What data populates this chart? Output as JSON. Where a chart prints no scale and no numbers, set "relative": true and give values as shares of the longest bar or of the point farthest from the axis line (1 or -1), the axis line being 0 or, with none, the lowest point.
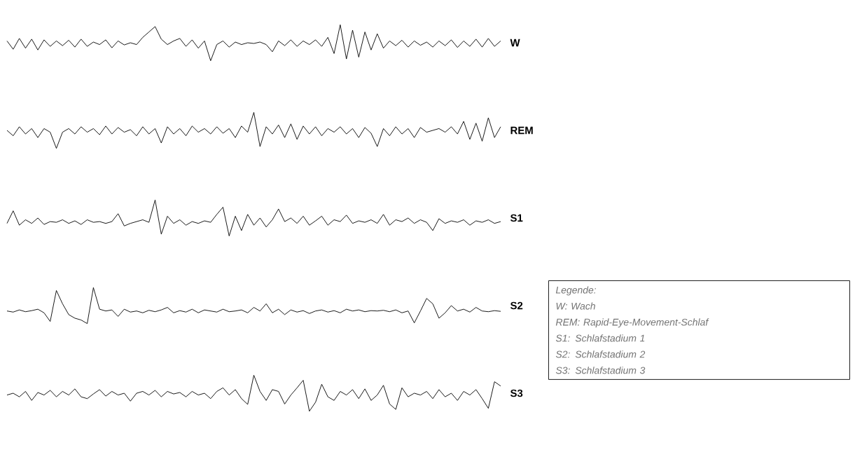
{
  "chart_data": [
    {
      "type": "line",
      "relative": true,
      "line_style": "solid",
      "marker": "none",
      "categories": [
        null,
        null,
        null,
        null,
        null,
        null,
        null,
        null,
        null,
        null,
        null,
        null,
        null,
        null,
        null,
        null,
        null,
        null,
        null,
        null,
        null,
        null,
        null,
        null,
        null,
        null,
        null,
        null,
        null,
        null,
        null,
        null,
        null,
        null,
        null,
        null,
        null,
        null,
        null,
        null,
        null,
        null,
        null,
        null,
        null,
        null,
        null,
        null,
        null,
        null,
        null,
        null,
        null,
        null,
        null,
        null,
        null,
        null,
        null,
        null,
        null,
        null,
        null,
        null,
        null,
        null,
        null,
        null,
        null,
        null,
        null,
        null,
        null,
        null,
        null,
        null,
        null,
        null,
        null,
        null,
        null
      ],
      "series": [
        {
          "name": "W",
          "color": "#000000",
          "values": [
            0.55,
            0.32,
            0.62,
            0.35,
            0.6,
            0.3,
            0.58,
            0.4,
            0.55,
            0.42,
            0.57,
            0.38,
            0.6,
            0.4,
            0.52,
            0.45,
            0.58,
            0.36,
            0.55,
            0.44,
            0.5,
            0.45,
            0.65,
            0.8,
            0.95,
            0.6,
            0.45,
            0.55,
            0.62,
            0.4,
            0.58,
            0.35,
            0.55,
            0.0,
            0.45,
            0.55,
            0.38,
            0.52,
            0.45,
            0.5,
            0.48,
            0.52,
            0.45,
            0.25,
            0.55,
            0.42,
            0.58,
            0.4,
            0.55,
            0.45,
            0.58,
            0.4,
            0.65,
            0.2,
            1.0,
            0.05,
            0.85,
            0.1,
            0.8,
            0.3,
            0.75,
            0.35,
            0.55,
            0.42,
            0.57,
            0.38,
            0.55,
            0.43,
            0.52,
            0.38,
            0.55,
            0.42,
            0.58,
            0.37,
            0.55,
            0.4,
            0.6,
            0.38,
            0.62,
            0.4,
            0.55
          ]
        }
      ]
    },
    {
      "type": "line",
      "relative": true,
      "line_style": "solid",
      "marker": "none",
      "categories": [
        null,
        null,
        null,
        null,
        null,
        null,
        null,
        null,
        null,
        null,
        null,
        null,
        null,
        null,
        null,
        null,
        null,
        null,
        null,
        null,
        null,
        null,
        null,
        null,
        null,
        null,
        null,
        null,
        null,
        null,
        null,
        null,
        null,
        null,
        null,
        null,
        null,
        null,
        null,
        null,
        null,
        null,
        null,
        null,
        null,
        null,
        null,
        null,
        null,
        null,
        null,
        null,
        null,
        null,
        null,
        null,
        null,
        null,
        null,
        null,
        null,
        null,
        null,
        null,
        null,
        null,
        null,
        null,
        null,
        null,
        null,
        null,
        null,
        null,
        null,
        null,
        null,
        null,
        null,
        null,
        null
      ],
      "series": [
        {
          "name": "REM",
          "color": "#000000",
          "values": [
            0.5,
            0.35,
            0.6,
            0.4,
            0.55,
            0.3,
            0.55,
            0.45,
            0.0,
            0.45,
            0.55,
            0.4,
            0.6,
            0.45,
            0.55,
            0.38,
            0.62,
            0.4,
            0.58,
            0.45,
            0.52,
            0.35,
            0.6,
            0.4,
            0.55,
            0.15,
            0.6,
            0.4,
            0.55,
            0.35,
            0.62,
            0.45,
            0.55,
            0.4,
            0.6,
            0.42,
            0.55,
            0.3,
            0.62,
            0.45,
            1.0,
            0.05,
            0.6,
            0.4,
            0.65,
            0.3,
            0.68,
            0.25,
            0.62,
            0.4,
            0.6,
            0.35,
            0.55,
            0.45,
            0.6,
            0.4,
            0.55,
            0.3,
            0.58,
            0.42,
            0.05,
            0.55,
            0.35,
            0.6,
            0.4,
            0.55,
            0.3,
            0.58,
            0.45,
            0.5,
            0.55,
            0.45,
            0.6,
            0.4,
            0.75,
            0.25,
            0.7,
            0.2,
            0.85,
            0.3,
            0.6
          ]
        }
      ]
    },
    {
      "type": "line",
      "relative": true,
      "line_style": "solid",
      "marker": "none",
      "categories": [
        null,
        null,
        null,
        null,
        null,
        null,
        null,
        null,
        null,
        null,
        null,
        null,
        null,
        null,
        null,
        null,
        null,
        null,
        null,
        null,
        null,
        null,
        null,
        null,
        null,
        null,
        null,
        null,
        null,
        null,
        null,
        null,
        null,
        null,
        null,
        null,
        null,
        null,
        null,
        null,
        null,
        null,
        null,
        null,
        null,
        null,
        null,
        null,
        null,
        null,
        null,
        null,
        null,
        null,
        null,
        null,
        null,
        null,
        null,
        null,
        null,
        null,
        null,
        null,
        null,
        null,
        null,
        null,
        null,
        null,
        null,
        null,
        null,
        null,
        null,
        null,
        null,
        null,
        null,
        null,
        null
      ],
      "series": [
        {
          "name": "S1",
          "color": "#000000",
          "values": [
            0.35,
            0.7,
            0.3,
            0.45,
            0.35,
            0.5,
            0.32,
            0.4,
            0.38,
            0.45,
            0.35,
            0.42,
            0.32,
            0.45,
            0.38,
            0.4,
            0.35,
            0.4,
            0.62,
            0.28,
            0.35,
            0.4,
            0.45,
            0.38,
            1.0,
            0.05,
            0.55,
            0.35,
            0.45,
            0.3,
            0.4,
            0.35,
            0.42,
            0.38,
            0.6,
            0.8,
            0.0,
            0.55,
            0.15,
            0.6,
            0.3,
            0.5,
            0.25,
            0.45,
            0.75,
            0.4,
            0.5,
            0.35,
            0.55,
            0.3,
            0.42,
            0.55,
            0.3,
            0.45,
            0.4,
            0.58,
            0.35,
            0.42,
            0.38,
            0.45,
            0.35,
            0.6,
            0.3,
            0.45,
            0.4,
            0.5,
            0.35,
            0.45,
            0.38,
            0.15,
            0.48,
            0.35,
            0.42,
            0.38,
            0.45,
            0.3,
            0.42,
            0.38,
            0.45,
            0.35,
            0.4
          ]
        }
      ]
    },
    {
      "type": "line",
      "relative": true,
      "line_style": "solid",
      "marker": "none",
      "categories": [
        null,
        null,
        null,
        null,
        null,
        null,
        null,
        null,
        null,
        null,
        null,
        null,
        null,
        null,
        null,
        null,
        null,
        null,
        null,
        null,
        null,
        null,
        null,
        null,
        null,
        null,
        null,
        null,
        null,
        null,
        null,
        null,
        null,
        null,
        null,
        null,
        null,
        null,
        null,
        null,
        null,
        null,
        null,
        null,
        null,
        null,
        null,
        null,
        null,
        null,
        null,
        null,
        null,
        null,
        null,
        null,
        null,
        null,
        null,
        null,
        null,
        null,
        null,
        null,
        null,
        null,
        null,
        null,
        null,
        null,
        null,
        null,
        null,
        null,
        null,
        null,
        null,
        null,
        null,
        null,
        null
      ],
      "series": [
        {
          "name": "S2",
          "color": "#000000",
          "values": [
            0.35,
            0.32,
            0.38,
            0.33,
            0.36,
            0.4,
            0.3,
            0.06,
            0.92,
            0.55,
            0.25,
            0.15,
            0.1,
            0.0,
            1.0,
            0.4,
            0.35,
            0.38,
            0.2,
            0.4,
            0.32,
            0.35,
            0.3,
            0.37,
            0.33,
            0.38,
            0.45,
            0.3,
            0.36,
            0.32,
            0.4,
            0.3,
            0.38,
            0.35,
            0.32,
            0.4,
            0.33,
            0.35,
            0.38,
            0.3,
            0.45,
            0.35,
            0.55,
            0.3,
            0.4,
            0.25,
            0.38,
            0.32,
            0.36,
            0.28,
            0.35,
            0.38,
            0.32,
            0.36,
            0.3,
            0.4,
            0.35,
            0.38,
            0.33,
            0.36,
            0.35,
            0.37,
            0.33,
            0.38,
            0.3,
            0.35,
            0.02,
            0.35,
            0.7,
            0.55,
            0.15,
            0.3,
            0.5,
            0.35,
            0.4,
            0.32,
            0.45,
            0.35,
            0.33,
            0.36,
            0.34
          ]
        }
      ]
    },
    {
      "type": "line",
      "relative": true,
      "line_style": "solid",
      "marker": "none",
      "categories": [
        null,
        null,
        null,
        null,
        null,
        null,
        null,
        null,
        null,
        null,
        null,
        null,
        null,
        null,
        null,
        null,
        null,
        null,
        null,
        null,
        null,
        null,
        null,
        null,
        null,
        null,
        null,
        null,
        null,
        null,
        null,
        null,
        null,
        null,
        null,
        null,
        null,
        null,
        null,
        null,
        null,
        null,
        null,
        null,
        null,
        null,
        null,
        null,
        null,
        null,
        null,
        null,
        null,
        null,
        null,
        null,
        null,
        null,
        null,
        null,
        null,
        null,
        null,
        null,
        null,
        null,
        null,
        null,
        null,
        null,
        null,
        null,
        null,
        null,
        null,
        null,
        null,
        null,
        null,
        null,
        null
      ],
      "series": [
        {
          "name": "S3",
          "color": "#000000",
          "values": [
            0.45,
            0.5,
            0.4,
            0.55,
            0.3,
            0.52,
            0.45,
            0.58,
            0.4,
            0.55,
            0.45,
            0.62,
            0.4,
            0.35,
            0.48,
            0.6,
            0.42,
            0.55,
            0.45,
            0.5,
            0.28,
            0.5,
            0.55,
            0.45,
            0.58,
            0.4,
            0.55,
            0.48,
            0.52,
            0.4,
            0.55,
            0.45,
            0.5,
            0.35,
            0.55,
            0.65,
            0.45,
            0.6,
            0.35,
            0.19,
            1.0,
            0.55,
            0.3,
            0.6,
            0.55,
            0.2,
            0.45,
            0.65,
            0.86,
            0.0,
            0.25,
            0.75,
            0.4,
            0.3,
            0.55,
            0.45,
            0.6,
            0.35,
            0.62,
            0.3,
            0.45,
            0.72,
            0.2,
            0.05,
            0.65,
            0.4,
            0.5,
            0.45,
            0.55,
            0.35,
            0.6,
            0.4,
            0.5,
            0.3,
            0.55,
            0.45,
            0.6,
            0.35,
            0.08,
            0.82,
            0.7
          ]
        }
      ]
    },
    {
      "type": "other",
      "title": "Legende:",
      "annotations": [
        "W: Wach",
        "REM: Rapid-Eye-Movement-Schlaf",
        "S1: Schlafstadium 1",
        "S2: Schlafstadium 2",
        "S3: Schlafstadium 3"
      ]
    }
  ]
}
